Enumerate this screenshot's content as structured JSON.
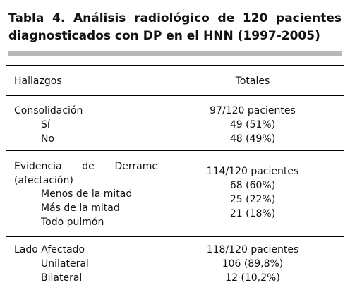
{
  "title": {
    "line1": "Tabla 4.  Análisis radiológico de 120 pacientes",
    "line2": "diagnosticados con DP en el HNN (1997-2005)"
  },
  "table": {
    "header": [
      "Hallazgos",
      "Totales"
    ],
    "sections": [
      {
        "label": "Consolidación",
        "total": "97/120 pacientes",
        "rows": [
          [
            "Sí",
            "49 (51%)"
          ],
          [
            "No",
            "48 (49%)"
          ]
        ]
      },
      {
        "label": "Evidencia de Derrame (afectación)",
        "total": "114/120 pacientes",
        "rows": [
          [
            "Menos de la mitad",
            "68 (60%)"
          ],
          [
            "Más de la mitad",
            "25 (22%)"
          ],
          [
            "Todo pulmón",
            "21 (18%)"
          ]
        ]
      },
      {
        "label": "Lado Afectado",
        "total": "118/120 pacientes",
        "rows": [
          [
            "Unilateral",
            "106 (89,8%)"
          ],
          [
            "Bilateral",
            "12 (10,2%)"
          ]
        ]
      }
    ]
  }
}
